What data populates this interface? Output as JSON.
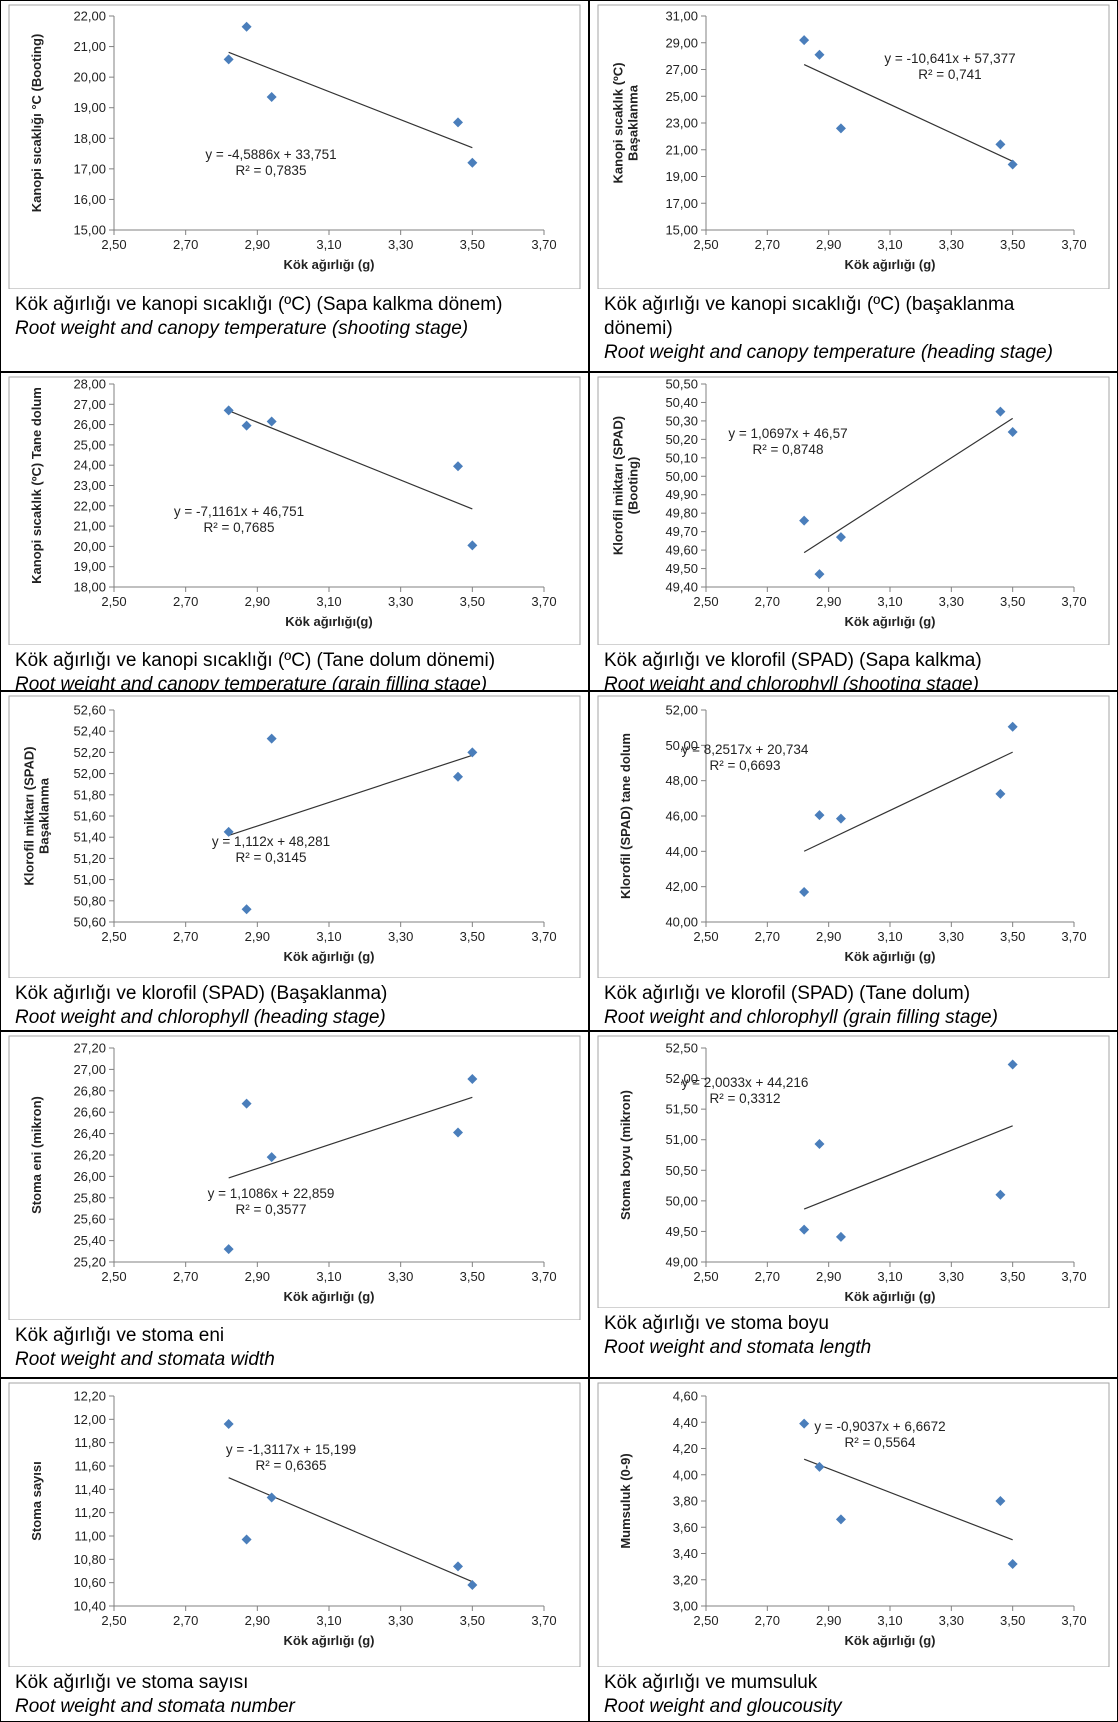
{
  "chart_data": [
    {
      "type": "scatter",
      "x": [
        2.82,
        2.87,
        2.94,
        3.46,
        3.5
      ],
      "y": [
        20.58,
        21.65,
        19.35,
        18.52,
        17.2
      ],
      "xlim": [
        2.5,
        3.7
      ],
      "ylim": [
        15,
        22
      ],
      "xticks_step": 0.2,
      "yticks_step": 1,
      "tick_decimals": 2,
      "xlabel": "Kök ağırlığı (g)",
      "ylabel": [
        "Kanopi sıcaklığı °C (Booting)"
      ],
      "trend": {
        "slope": -4.5886,
        "intercept": 33.751
      },
      "equation": "y = -4,5886x + 33,751",
      "r2": "R² = 0,7835",
      "marker_color": "#4a7ebb",
      "caption_tr": [
        "Kök ağırlığı ve kanopi sıcaklığı (ºC) (Sapa kalkma dönem)"
      ],
      "caption_en": [
        "Root weight and canopy temperature (shooting stage)"
      ]
    },
    {
      "type": "scatter",
      "x": [
        2.82,
        2.87,
        2.94,
        3.46,
        3.5
      ],
      "y": [
        29.2,
        28.1,
        22.6,
        21.4,
        19.9
      ],
      "xlim": [
        2.5,
        3.7
      ],
      "ylim": [
        15,
        31
      ],
      "xticks_step": 0.2,
      "yticks_step": 2,
      "tick_decimals": 2,
      "xlabel": "Kök ağırlığı (g)",
      "ylabel": [
        "Kanopi sıcaklık (ºC)",
        "Başaklanma"
      ],
      "trend": {
        "slope": -10.641,
        "intercept": 57.377
      },
      "equation": "y = -10,641x + 57,377",
      "r2": "R² = 0,741",
      "marker_color": "#4a7ebb",
      "caption_tr": [
        "Kök ağırlığı ve kanopi sıcaklığı (ºC) (başaklanma",
        "dönemi)"
      ],
      "caption_en": [
        "Root weight and canopy temperature (heading stage)"
      ]
    },
    {
      "type": "scatter",
      "x": [
        2.82,
        2.87,
        2.94,
        3.46,
        3.5
      ],
      "y": [
        26.7,
        25.95,
        26.15,
        23.95,
        20.05
      ],
      "xlim": [
        2.5,
        3.7
      ],
      "ylim": [
        18,
        28
      ],
      "xticks_step": 0.2,
      "yticks_step": 1,
      "tick_decimals": 2,
      "xlabel": "Kök ağırlığı(g)",
      "ylabel": [
        "Kanopi sıcaklık (ºC) Tane dolum"
      ],
      "trend": {
        "slope": -7.1161,
        "intercept": 46.751
      },
      "equation": "y = -7,1161x + 46,751",
      "r2": "R² = 0,7685",
      "marker_color": "#4a7ebb",
      "caption_tr": [
        "Kök ağırlığı ve kanopi sıcaklığı (ºC) (Tane dolum dönemi)"
      ],
      "caption_en": [
        "Root weight and canopy temperature (grain filling stage)"
      ]
    },
    {
      "type": "scatter",
      "x": [
        2.82,
        2.87,
        2.94,
        3.46,
        3.5
      ],
      "y": [
        49.76,
        49.47,
        49.67,
        50.35,
        50.24
      ],
      "xlim": [
        2.5,
        3.7
      ],
      "ylim": [
        49.4,
        50.5
      ],
      "xticks_step": 0.2,
      "yticks_step": 0.1,
      "tick_decimals": 2,
      "xlabel": "Kök ağırlığı (g)",
      "ylabel": [
        "Klorofil miktarı (SPAD)",
        "(Booting)"
      ],
      "trend": {
        "slope": 1.0697,
        "intercept": 46.57
      },
      "equation": "y = 1,0697x + 46,57",
      "r2": "R² = 0,8748",
      "marker_color": "#4a7ebb",
      "caption_tr": [
        "Kök ağırlığı ve klorofil (SPAD) (Sapa kalkma)"
      ],
      "caption_en": [
        "Root weight and chlorophyll (shooting stage)"
      ]
    },
    {
      "type": "scatter",
      "x": [
        2.82,
        2.87,
        2.94,
        3.46,
        3.5
      ],
      "y": [
        51.45,
        50.72,
        52.33,
        51.97,
        52.2
      ],
      "xlim": [
        2.5,
        3.7
      ],
      "ylim": [
        50.6,
        52.6
      ],
      "xticks_step": 0.2,
      "yticks_step": 0.2,
      "tick_decimals": 2,
      "xlabel": "Kök ağırlığı (g)",
      "ylabel": [
        "Klorofil miktarı (SPAD)",
        "Başaklanma"
      ],
      "trend": {
        "slope": 1.112,
        "intercept": 48.281
      },
      "equation": "y = 1,112x + 48,281",
      "r2": "R² = 0,3145",
      "marker_color": "#4a7ebb",
      "caption_tr": [
        "Kök ağırlığı ve klorofil (SPAD) (Başaklanma)"
      ],
      "caption_en": [
        "Root weight and chlorophyll (heading stage)"
      ]
    },
    {
      "type": "scatter",
      "x": [
        2.82,
        2.87,
        2.94,
        3.46,
        3.5
      ],
      "y": [
        41.7,
        46.05,
        45.85,
        47.25,
        51.05
      ],
      "xlim": [
        2.5,
        3.7
      ],
      "ylim": [
        40,
        52
      ],
      "xticks_step": 0.2,
      "yticks_step": 2,
      "tick_decimals": 2,
      "xlabel": "Kök ağırlığı (g)",
      "ylabel": [
        "Klorofil (SPAD) tane dolum"
      ],
      "trend": {
        "slope": 8.2517,
        "intercept": 20.734
      },
      "equation": "y = 8,2517x + 20,734",
      "r2": "R² = 0,6693",
      "marker_color": "#4a7ebb",
      "caption_tr": [
        "Kök ağırlığı ve klorofil (SPAD) (Tane dolum)"
      ],
      "caption_en": [
        "Root weight and chlorophyll (grain filling stage)"
      ]
    },
    {
      "type": "scatter",
      "x": [
        2.82,
        2.87,
        2.94,
        3.46,
        3.5
      ],
      "y": [
        25.32,
        26.68,
        26.18,
        26.41,
        26.91
      ],
      "xlim": [
        2.5,
        3.7
      ],
      "ylim": [
        25.2,
        27.2
      ],
      "xticks_step": 0.2,
      "yticks_step": 0.2,
      "tick_decimals": 2,
      "xlabel": "Kök ağırlığı (g)",
      "ylabel": [
        "Stoma eni (mikron)"
      ],
      "trend": {
        "slope": 1.1086,
        "intercept": 22.859
      },
      "equation": "y = 1,1086x + 22,859",
      "r2": "R² = 0,3577",
      "marker_color": "#4a7ebb",
      "caption_tr": [
        "Kök ağırlığı ve stoma eni"
      ],
      "caption_en": [
        "Root weight and stomata width"
      ]
    },
    {
      "type": "scatter",
      "x": [
        2.82,
        2.87,
        2.94,
        3.46,
        3.5
      ],
      "y": [
        49.53,
        50.93,
        49.41,
        50.1,
        52.23
      ],
      "xlim": [
        2.5,
        3.7
      ],
      "ylim": [
        49,
        52.5
      ],
      "xticks_step": 0.2,
      "yticks_step": 0.5,
      "tick_decimals": 2,
      "xlabel": "Kök ağırlığı (g)",
      "ylabel": [
        "Stoma boyu (mikron)"
      ],
      "trend": {
        "slope": 2.0033,
        "intercept": 44.216
      },
      "equation": "y = 2,0033x + 44,216",
      "r2": "R² = 0,3312",
      "marker_color": "#4a7ebb",
      "caption_tr": [
        "Kök ağırlığı ve stoma boyu"
      ],
      "caption_en": [
        "Root weight and stomata length"
      ]
    },
    {
      "type": "scatter",
      "x": [
        2.82,
        2.87,
        2.94,
        3.46,
        3.5
      ],
      "y": [
        11.96,
        10.97,
        11.33,
        10.74,
        10.58
      ],
      "xlim": [
        2.5,
        3.7
      ],
      "ylim": [
        10.4,
        12.2
      ],
      "xticks_step": 0.2,
      "yticks_step": 0.2,
      "tick_decimals": 2,
      "xlabel": "Kök ağırlığı (g)",
      "ylabel": [
        "Stoma sayısı"
      ],
      "trend": {
        "slope": -1.3117,
        "intercept": 15.199
      },
      "equation": "y = -1,3117x + 15,199",
      "r2": "R² = 0,6365",
      "marker_color": "#4a7ebb",
      "caption_tr": [
        "Kök ağırlığı ve stoma sayısı"
      ],
      "caption_en": [
        "Root weight and stomata number"
      ]
    },
    {
      "type": "scatter",
      "x": [
        2.82,
        2.87,
        2.94,
        3.46,
        3.5
      ],
      "y": [
        4.39,
        4.06,
        3.66,
        3.8,
        3.32
      ],
      "xlim": [
        2.5,
        3.7
      ],
      "ylim": [
        3,
        4.6
      ],
      "xticks_step": 0.2,
      "yticks_step": 0.2,
      "tick_decimals": 2,
      "xlabel": "Kök ağırlığı (g)",
      "ylabel": [
        "Mumsuluk (0-9)"
      ],
      "trend": {
        "slope": -0.9037,
        "intercept": 6.6672
      },
      "equation": "y = -0,9037x + 6,6672",
      "r2": "R² = 0,5564",
      "marker_color": "#4a7ebb",
      "caption_tr": [
        "Kök ağırlığı ve mumsuluk"
      ],
      "caption_en": [
        "Root weight and gloucousity"
      ]
    }
  ]
}
